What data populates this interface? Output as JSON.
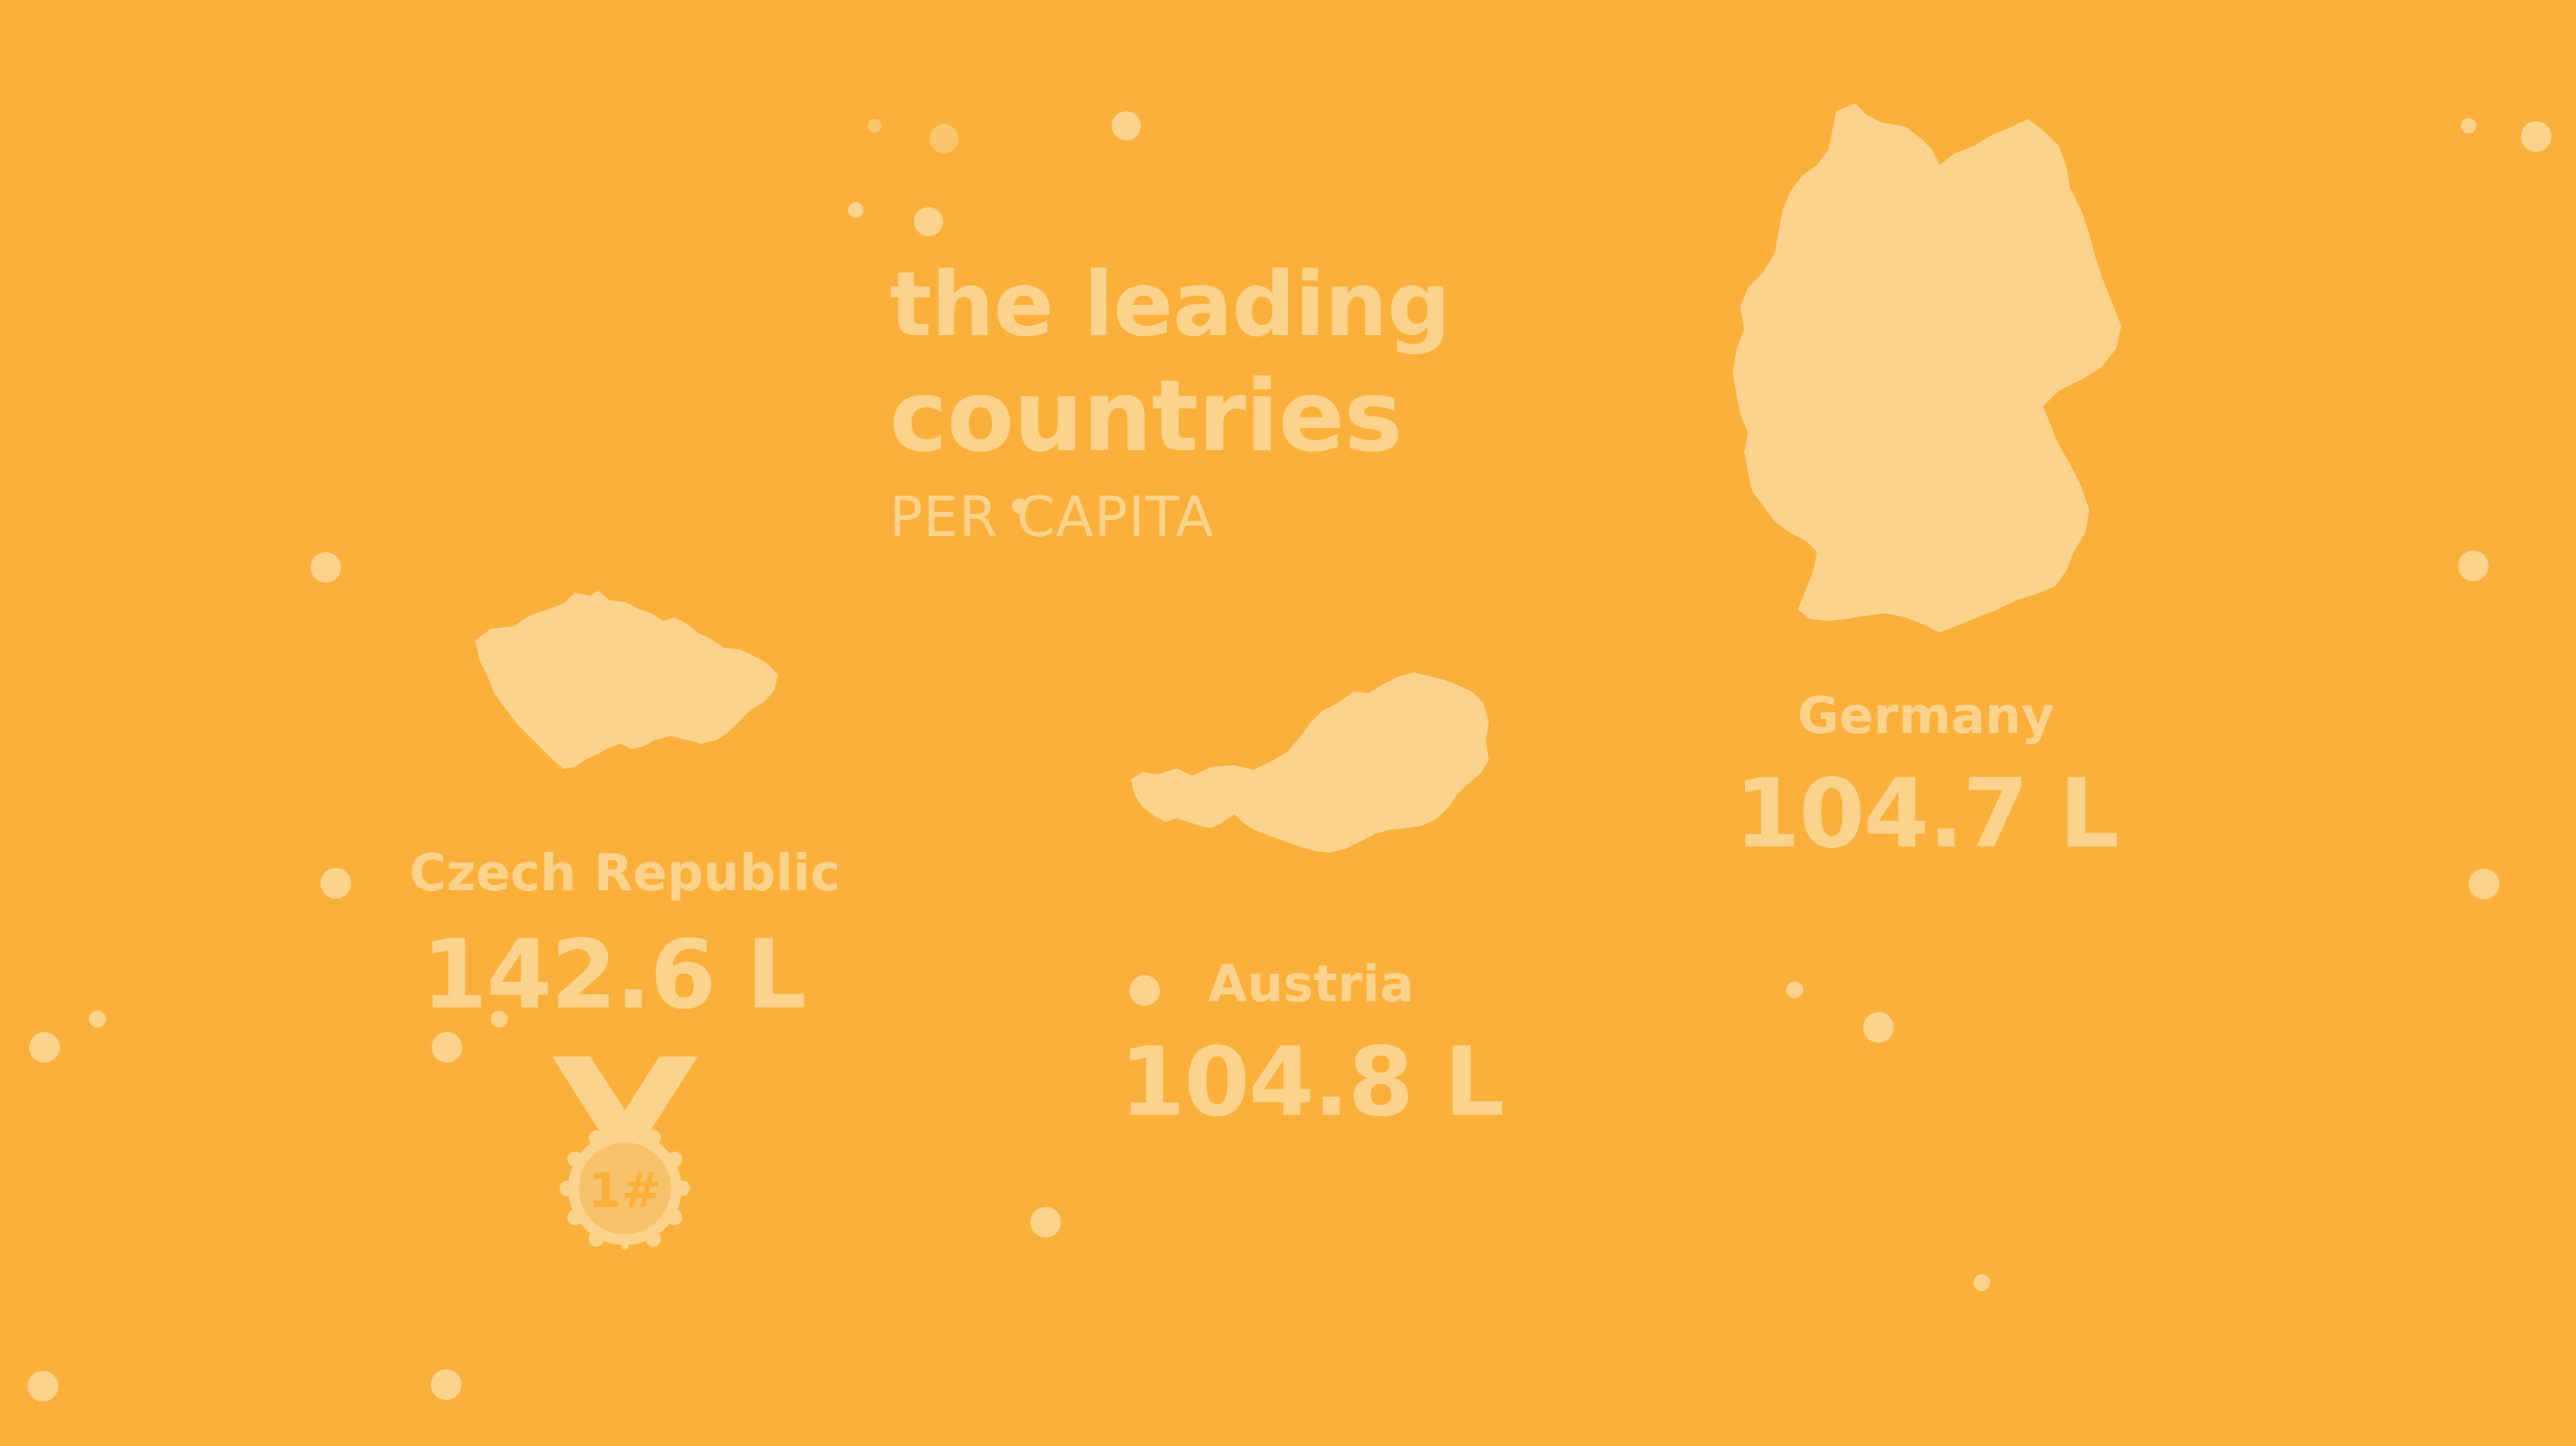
{
  "headline": {
    "line1": "the leading",
    "line2": "countries",
    "line3": "PER CAPITA"
  },
  "colors": {
    "background": "#FBB03B",
    "foreground": "#FCD38C"
  },
  "countries": [
    {
      "name": "Czech Republic",
      "value": "142.6  L",
      "rank_badge": "1#",
      "icon": "czech-republic-map-icon"
    },
    {
      "name": "Austria",
      "value": "104.8  L",
      "icon": "austria-map-icon"
    },
    {
      "name": "Germany",
      "value": "104.7  L",
      "icon": "germany-map-icon"
    }
  ],
  "medal_icon": "medal-icon"
}
